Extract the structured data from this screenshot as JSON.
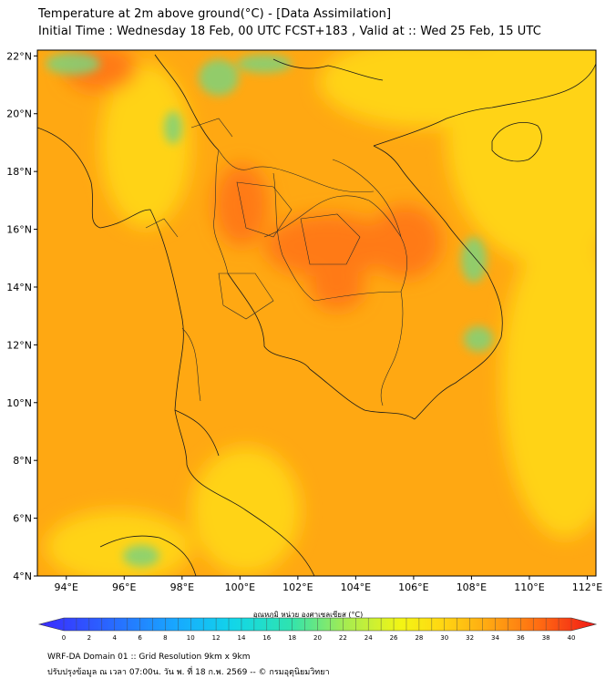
{
  "header": {
    "title": "Temperature at 2m above ground(°C) - [Data Assimilation]",
    "subtitle": "Initial Time : Wednesday 18 Feb, 00 UTC FCST+183 , Valid at :: Wed 25 Feb, 15 UTC"
  },
  "map": {
    "lat_range": [
      4,
      22.2
    ],
    "lon_range": [
      93,
      112.3
    ],
    "lat_ticks": [
      "4°N",
      "6°N",
      "8°N",
      "10°N",
      "12°N",
      "14°N",
      "16°N",
      "18°N",
      "20°N",
      "22°N"
    ],
    "lon_ticks": [
      "94°E",
      "96°E",
      "98°E",
      "100°E",
      "102°E",
      "104°E",
      "106°E",
      "108°E",
      "110°E",
      "112°E"
    ],
    "colors": {
      "base": "#ffa812",
      "warm": "#ff7a14",
      "cool": "#ffd312",
      "green": "#7fd37a"
    }
  },
  "colorbar": {
    "label": "อุณหภูมิ หน่วย องศาเซลเซียส (°C)",
    "ticks": [
      "0",
      "2",
      "4",
      "6",
      "8",
      "10",
      "12",
      "14",
      "16",
      "18",
      "20",
      "22",
      "24",
      "26",
      "28",
      "30",
      "32",
      "34",
      "36",
      "38",
      "40"
    ],
    "min": 0,
    "max": 40
  },
  "footer": {
    "line1": "WRF-DA Domain 01 :: Grid Resolution 9km x 9km",
    "line2": "ปรับปรุงข้อมูล ณ เวลา 07:00น. วัน พ. ที่ 18 ก.พ. 2569 -- © กรมอุตุนิยมวิทยา"
  }
}
